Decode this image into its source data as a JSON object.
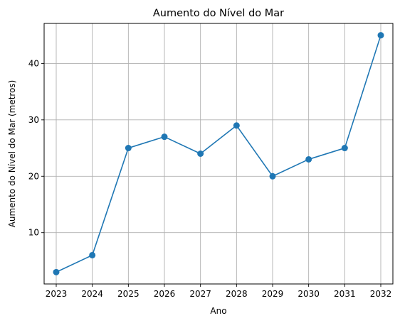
{
  "chart_data": {
    "type": "line",
    "title": "Aumento do Nível do Mar",
    "xlabel": "Ano",
    "ylabel": "Aumento do Nível do Mar (metros)",
    "x": [
      2023,
      2024,
      2025,
      2026,
      2027,
      2028,
      2029,
      2030,
      2031,
      2032
    ],
    "x_ticks": [
      "2023",
      "2024",
      "2025",
      "2026",
      "2027",
      "2028",
      "2029",
      "2030",
      "2031",
      "2032"
    ],
    "y_ticks": [
      10,
      20,
      30,
      40
    ],
    "y_tick_labels": [
      "10",
      "20",
      "30",
      "40"
    ],
    "ylim": [
      0.9,
      47.1
    ],
    "series": [
      {
        "values": [
          3,
          6,
          25,
          27,
          24,
          29,
          20,
          23,
          25,
          45
        ],
        "color": "#1f77b4",
        "marker": "circle"
      }
    ],
    "grid": true,
    "grid_color": "#b0b0b0"
  }
}
